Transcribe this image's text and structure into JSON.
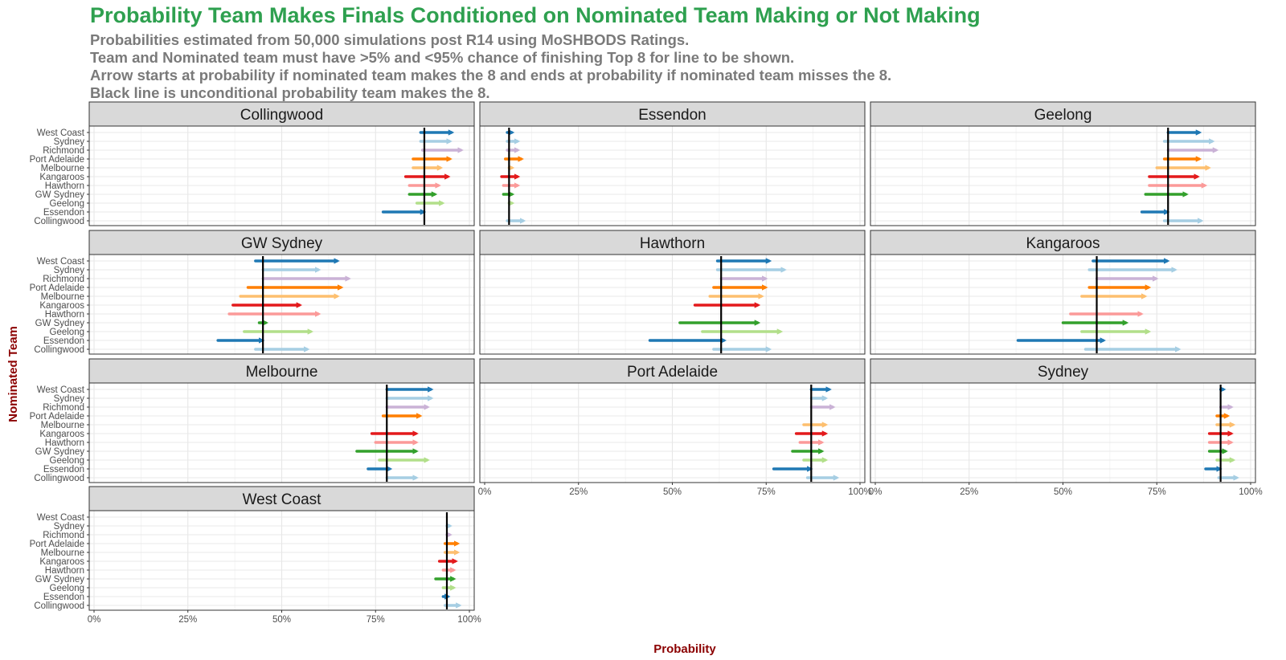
{
  "title": "Probability Team Makes Finals Conditioned on Nominated Team Making or Not Making",
  "subtitle": [
    "Probabilities estimated from 50,000 simulations post R14 using MoSHBODS Ratings.",
    "Team and Nominated team must have >5% and <95% chance of finishing Top 8 for line to be shown.",
    "Arrow starts at probability if nominated team makes the 8 and ends at probability if nominated team misses the 8.",
    "Black line is unconditional probability team makes the 8."
  ],
  "chart_data": {
    "type": "faceted-arrow",
    "xlabel": "Probability",
    "ylabel": "Nominated Team",
    "xlim": [
      0,
      1
    ],
    "x_ticks": [
      "0%",
      "25%",
      "50%",
      "75%",
      "100%"
    ],
    "y_categories": [
      "West Coast",
      "Sydney",
      "Richmond",
      "Port Adelaide",
      "Melbourne",
      "Kangaroos",
      "Hawthorn",
      "GW Sydney",
      "Geelong",
      "Essendon",
      "Collingwood"
    ],
    "colors": {
      "West Coast": "#1f78b4",
      "Sydney": "#a6cee3",
      "Richmond": "#cab2d6",
      "Port Adelaide": "#ff7f00",
      "Melbourne": "#fdbf6f",
      "Kangaroos": "#e31a1c",
      "Hawthorn": "#fb9a99",
      "GW Sydney": "#33a02c",
      "Geelong": "#b2df8a",
      "Essendon": "#1f78b4",
      "Collingwood": "#a6cee3"
    },
    "legend": "none",
    "grid": true,
    "facets": [
      {
        "team": "Collingwood",
        "baseline": 0.88,
        "arrows": [
          {
            "nominated": "West Coast",
            "start": 0.87,
            "end": 0.955
          },
          {
            "nominated": "Sydney",
            "start": 0.87,
            "end": 0.95
          },
          {
            "nominated": "Richmond",
            "start": 0.875,
            "end": 0.98
          },
          {
            "nominated": "Port Adelaide",
            "start": 0.85,
            "end": 0.95
          },
          {
            "nominated": "Melbourne",
            "start": 0.85,
            "end": 0.925
          },
          {
            "nominated": "Kangaroos",
            "start": 0.83,
            "end": 0.945
          },
          {
            "nominated": "Hawthorn",
            "start": 0.84,
            "end": 0.92
          },
          {
            "nominated": "GW Sydney",
            "start": 0.84,
            "end": 0.91
          },
          {
            "nominated": "Geelong",
            "start": 0.86,
            "end": 0.93
          },
          {
            "nominated": "Essendon",
            "start": 0.77,
            "end": 0.88
          }
        ]
      },
      {
        "team": "Essendon",
        "baseline": 0.065,
        "arrows": [
          {
            "nominated": "West Coast",
            "start": 0.06,
            "end": 0.075
          },
          {
            "nominated": "Sydney",
            "start": 0.06,
            "end": 0.09
          },
          {
            "nominated": "Richmond",
            "start": 0.06,
            "end": 0.09
          },
          {
            "nominated": "Port Adelaide",
            "start": 0.055,
            "end": 0.1
          },
          {
            "nominated": "Melbourne",
            "start": 0.065,
            "end": 0.075
          },
          {
            "nominated": "Kangaroos",
            "start": 0.045,
            "end": 0.09
          },
          {
            "nominated": "Hawthorn",
            "start": 0.05,
            "end": 0.09
          },
          {
            "nominated": "GW Sydney",
            "start": 0.05,
            "end": 0.075
          },
          {
            "nominated": "Geelong",
            "start": 0.065,
            "end": 0.075
          },
          {
            "nominated": "Collingwood",
            "start": 0.06,
            "end": 0.105
          }
        ]
      },
      {
        "team": "Geelong",
        "baseline": 0.78,
        "arrows": [
          {
            "nominated": "West Coast",
            "start": 0.78,
            "end": 0.865
          },
          {
            "nominated": "Sydney",
            "start": 0.77,
            "end": 0.9
          },
          {
            "nominated": "Richmond",
            "start": 0.78,
            "end": 0.91
          },
          {
            "nominated": "Port Adelaide",
            "start": 0.77,
            "end": 0.865
          },
          {
            "nominated": "Melbourne",
            "start": 0.75,
            "end": 0.89
          },
          {
            "nominated": "Kangaroos",
            "start": 0.73,
            "end": 0.86
          },
          {
            "nominated": "Hawthorn",
            "start": 0.73,
            "end": 0.88
          },
          {
            "nominated": "GW Sydney",
            "start": 0.72,
            "end": 0.83
          },
          {
            "nominated": "Essendon",
            "start": 0.71,
            "end": 0.78
          },
          {
            "nominated": "Collingwood",
            "start": 0.77,
            "end": 0.87
          }
        ]
      },
      {
        "team": "GW Sydney",
        "baseline": 0.45,
        "arrows": [
          {
            "nominated": "West Coast",
            "start": 0.43,
            "end": 0.65
          },
          {
            "nominated": "Sydney",
            "start": 0.45,
            "end": 0.6
          },
          {
            "nominated": "Richmond",
            "start": 0.45,
            "end": 0.68
          },
          {
            "nominated": "Port Adelaide",
            "start": 0.41,
            "end": 0.66
          },
          {
            "nominated": "Melbourne",
            "start": 0.39,
            "end": 0.65
          },
          {
            "nominated": "Kangaroos",
            "start": 0.37,
            "end": 0.55
          },
          {
            "nominated": "Hawthorn",
            "start": 0.36,
            "end": 0.6
          },
          {
            "nominated": "GW Sydney",
            "start": 0.44,
            "end": 0.46
          },
          {
            "nominated": "Geelong",
            "start": 0.4,
            "end": 0.58
          },
          {
            "nominated": "Essendon",
            "start": 0.33,
            "end": 0.45
          },
          {
            "nominated": "Collingwood",
            "start": 0.43,
            "end": 0.57
          }
        ]
      },
      {
        "team": "Hawthorn",
        "baseline": 0.63,
        "arrows": [
          {
            "nominated": "West Coast",
            "start": 0.62,
            "end": 0.76
          },
          {
            "nominated": "Sydney",
            "start": 0.62,
            "end": 0.8
          },
          {
            "nominated": "Richmond",
            "start": 0.63,
            "end": 0.75
          },
          {
            "nominated": "Port Adelaide",
            "start": 0.61,
            "end": 0.75
          },
          {
            "nominated": "Melbourne",
            "start": 0.6,
            "end": 0.74
          },
          {
            "nominated": "Kangaroos",
            "start": 0.56,
            "end": 0.73
          },
          {
            "nominated": "GW Sydney",
            "start": 0.52,
            "end": 0.73
          },
          {
            "nominated": "Geelong",
            "start": 0.58,
            "end": 0.79
          },
          {
            "nominated": "Essendon",
            "start": 0.44,
            "end": 0.64
          },
          {
            "nominated": "Collingwood",
            "start": 0.61,
            "end": 0.76
          }
        ]
      },
      {
        "team": "Kangaroos",
        "baseline": 0.59,
        "arrows": [
          {
            "nominated": "West Coast",
            "start": 0.58,
            "end": 0.78
          },
          {
            "nominated": "Sydney",
            "start": 0.57,
            "end": 0.8
          },
          {
            "nominated": "Richmond",
            "start": 0.59,
            "end": 0.75
          },
          {
            "nominated": "Port Adelaide",
            "start": 0.57,
            "end": 0.73
          },
          {
            "nominated": "Melbourne",
            "start": 0.55,
            "end": 0.72
          },
          {
            "nominated": "Hawthorn",
            "start": 0.52,
            "end": 0.71
          },
          {
            "nominated": "GW Sydney",
            "start": 0.5,
            "end": 0.67
          },
          {
            "nominated": "Geelong",
            "start": 0.55,
            "end": 0.73
          },
          {
            "nominated": "Essendon",
            "start": 0.38,
            "end": 0.61
          },
          {
            "nominated": "Collingwood",
            "start": 0.56,
            "end": 0.81
          }
        ]
      },
      {
        "team": "Melbourne",
        "baseline": 0.78,
        "arrows": [
          {
            "nominated": "West Coast",
            "start": 0.78,
            "end": 0.9
          },
          {
            "nominated": "Sydney",
            "start": 0.78,
            "end": 0.9
          },
          {
            "nominated": "Richmond",
            "start": 0.78,
            "end": 0.89
          },
          {
            "nominated": "Port Adelaide",
            "start": 0.77,
            "end": 0.87
          },
          {
            "nominated": "Kangaroos",
            "start": 0.74,
            "end": 0.86
          },
          {
            "nominated": "Hawthorn",
            "start": 0.75,
            "end": 0.86
          },
          {
            "nominated": "GW Sydney",
            "start": 0.7,
            "end": 0.86
          },
          {
            "nominated": "Geelong",
            "start": 0.76,
            "end": 0.89
          },
          {
            "nominated": "Essendon",
            "start": 0.73,
            "end": 0.79
          },
          {
            "nominated": "Collingwood",
            "start": 0.78,
            "end": 0.86
          }
        ]
      },
      {
        "team": "Port Adelaide",
        "baseline": 0.87,
        "arrows": [
          {
            "nominated": "West Coast",
            "start": 0.87,
            "end": 0.92
          },
          {
            "nominated": "Sydney",
            "start": 0.87,
            "end": 0.91
          },
          {
            "nominated": "Richmond",
            "start": 0.87,
            "end": 0.93
          },
          {
            "nominated": "Melbourne",
            "start": 0.85,
            "end": 0.91
          },
          {
            "nominated": "Kangaroos",
            "start": 0.83,
            "end": 0.91
          },
          {
            "nominated": "Hawthorn",
            "start": 0.84,
            "end": 0.9
          },
          {
            "nominated": "GW Sydney",
            "start": 0.82,
            "end": 0.9
          },
          {
            "nominated": "Geelong",
            "start": 0.85,
            "end": 0.91
          },
          {
            "nominated": "Essendon",
            "start": 0.77,
            "end": 0.87
          },
          {
            "nominated": "Collingwood",
            "start": 0.86,
            "end": 0.94
          }
        ]
      },
      {
        "team": "Sydney",
        "baseline": 0.92,
        "arrows": [
          {
            "nominated": "West Coast",
            "start": 0.92,
            "end": 0.93
          },
          {
            "nominated": "Richmond",
            "start": 0.92,
            "end": 0.95
          },
          {
            "nominated": "Port Adelaide",
            "start": 0.91,
            "end": 0.94
          },
          {
            "nominated": "Melbourne",
            "start": 0.91,
            "end": 0.955
          },
          {
            "nominated": "Kangaroos",
            "start": 0.89,
            "end": 0.95
          },
          {
            "nominated": "Hawthorn",
            "start": 0.89,
            "end": 0.95
          },
          {
            "nominated": "GW Sydney",
            "start": 0.89,
            "end": 0.935
          },
          {
            "nominated": "Geelong",
            "start": 0.91,
            "end": 0.955
          },
          {
            "nominated": "Essendon",
            "start": 0.88,
            "end": 0.92
          },
          {
            "nominated": "Collingwood",
            "start": 0.915,
            "end": 0.965
          }
        ]
      },
      {
        "team": "West Coast",
        "baseline": 0.94,
        "arrows": [
          {
            "nominated": "Sydney",
            "start": 0.94,
            "end": 0.95
          },
          {
            "nominated": "Richmond",
            "start": 0.94,
            "end": 0.95
          },
          {
            "nominated": "Port Adelaide",
            "start": 0.935,
            "end": 0.97
          },
          {
            "nominated": "Melbourne",
            "start": 0.935,
            "end": 0.97
          },
          {
            "nominated": "Kangaroos",
            "start": 0.92,
            "end": 0.965
          },
          {
            "nominated": "Hawthorn",
            "start": 0.93,
            "end": 0.96
          },
          {
            "nominated": "GW Sydney",
            "start": 0.91,
            "end": 0.96
          },
          {
            "nominated": "Geelong",
            "start": 0.93,
            "end": 0.96
          },
          {
            "nominated": "Essendon",
            "start": 0.93,
            "end": 0.945
          },
          {
            "nominated": "Collingwood",
            "start": 0.935,
            "end": 0.975
          }
        ]
      }
    ]
  }
}
